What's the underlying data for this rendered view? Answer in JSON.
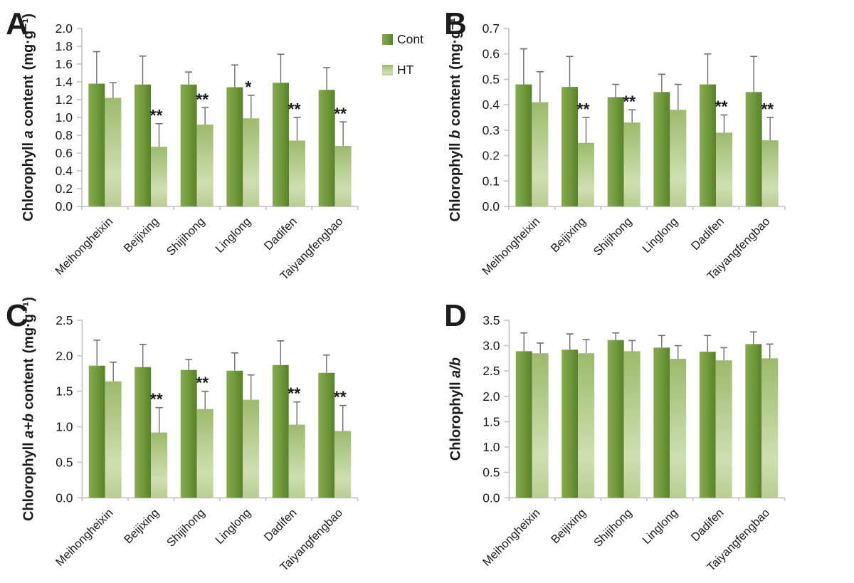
{
  "figure": {
    "legend": {
      "items": [
        {
          "label": "Cont",
          "series_key": "cont"
        },
        {
          "label": "HT",
          "series_key": "ht"
        }
      ],
      "position": "top-right-panel-A"
    },
    "colors": {
      "cont_light": "#86aa50",
      "cont_main": "#6d9839",
      "cont_dark": "#5a812b",
      "ht_top": "#9cba6c",
      "ht_mid": "#cfdfb2",
      "ht_bottom": "#b9cd92",
      "error_bar": "#6f6f6a",
      "axis": "#c2c2c2",
      "text": "#1b1b1b"
    }
  },
  "chart_data": [
    {
      "panel": "A",
      "type": "bar",
      "title": "",
      "ylabel": {
        "pre": "Chlorophyll ",
        "em": "a",
        "post": " content",
        "unit": "(mg·g⁻¹)"
      },
      "ylim": [
        0,
        2.0
      ],
      "ytick_step": 0.2,
      "grid": false,
      "legend_visible": true,
      "categories": [
        "Meihongheixin",
        "Beijixing",
        "Shijihong",
        "Linglong",
        "Dadifen",
        "Taiyangfengbao"
      ],
      "series": [
        {
          "name": "Cont",
          "values": [
            1.38,
            1.37,
            1.37,
            1.34,
            1.39,
            1.31
          ],
          "errors": [
            0.36,
            0.32,
            0.14,
            0.25,
            0.32,
            0.25
          ]
        },
        {
          "name": "HT",
          "values": [
            1.22,
            0.67,
            0.92,
            0.99,
            0.74,
            0.68
          ],
          "errors": [
            0.17,
            0.26,
            0.19,
            0.26,
            0.26,
            0.27
          ]
        }
      ],
      "significance": [
        "",
        "**",
        "**",
        "*",
        "**",
        "**"
      ]
    },
    {
      "panel": "B",
      "type": "bar",
      "title": "",
      "ylabel": {
        "pre": "Chlorophyll ",
        "em": "b",
        "post": " content",
        "unit": "(mg·g⁻¹)"
      },
      "ylim": [
        0,
        0.7
      ],
      "ytick_step": 0.1,
      "grid": false,
      "legend_visible": false,
      "categories": [
        "Meihongheixin",
        "Beijixing",
        "Shijihong",
        "Linglong",
        "Dadifen",
        "Taiyangfengbao"
      ],
      "series": [
        {
          "name": "Cont",
          "values": [
            0.48,
            0.47,
            0.43,
            0.45,
            0.48,
            0.45
          ],
          "errors": [
            0.14,
            0.12,
            0.05,
            0.07,
            0.12,
            0.14
          ]
        },
        {
          "name": "HT",
          "values": [
            0.41,
            0.25,
            0.33,
            0.38,
            0.29,
            0.26
          ],
          "errors": [
            0.12,
            0.1,
            0.05,
            0.1,
            0.07,
            0.09
          ]
        }
      ],
      "significance": [
        "",
        "**",
        "**",
        "",
        "**",
        "**"
      ]
    },
    {
      "panel": "C",
      "type": "bar",
      "title": "",
      "ylabel": {
        "pre": "Chlorophyll ",
        "em": "a+b",
        "post": " content",
        "unit": "(mg·g⁻¹)"
      },
      "ylim": [
        0,
        2.5
      ],
      "ytick_step": 0.5,
      "grid": false,
      "legend_visible": false,
      "categories": [
        "Meihongheixin",
        "Beijixing",
        "Shijihong",
        "Linglong",
        "Dadifen",
        "Taiyangfengbao"
      ],
      "series": [
        {
          "name": "Cont",
          "values": [
            1.86,
            1.84,
            1.8,
            1.79,
            1.87,
            1.76
          ],
          "errors": [
            0.36,
            0.32,
            0.15,
            0.25,
            0.34,
            0.25
          ]
        },
        {
          "name": "HT",
          "values": [
            1.64,
            0.92,
            1.25,
            1.38,
            1.03,
            0.94
          ],
          "errors": [
            0.27,
            0.35,
            0.25,
            0.35,
            0.32,
            0.36
          ]
        }
      ],
      "significance": [
        "",
        "**",
        "**",
        "",
        "**",
        "**"
      ]
    },
    {
      "panel": "D",
      "type": "bar",
      "title": "",
      "ylabel": {
        "pre": "Chlorophyll ",
        "em": "a/b",
        "post": "",
        "unit": ""
      },
      "ylim": [
        0,
        3.5
      ],
      "ytick_step": 0.5,
      "grid": false,
      "legend_visible": false,
      "categories": [
        "Meihongheixin",
        "Beijixing",
        "Shijihong",
        "Linglong",
        "Dadifen",
        "Taiyangfengbao"
      ],
      "series": [
        {
          "name": "Cont",
          "values": [
            2.89,
            2.92,
            3.11,
            2.96,
            2.88,
            3.03
          ],
          "errors": [
            0.36,
            0.31,
            0.14,
            0.24,
            0.32,
            0.24
          ]
        },
        {
          "name": "HT",
          "values": [
            2.85,
            2.85,
            2.89,
            2.74,
            2.71,
            2.75
          ],
          "errors": [
            0.2,
            0.27,
            0.21,
            0.26,
            0.25,
            0.28
          ]
        }
      ],
      "significance": [
        "",
        "",
        "",
        "",
        "",
        ""
      ]
    }
  ]
}
